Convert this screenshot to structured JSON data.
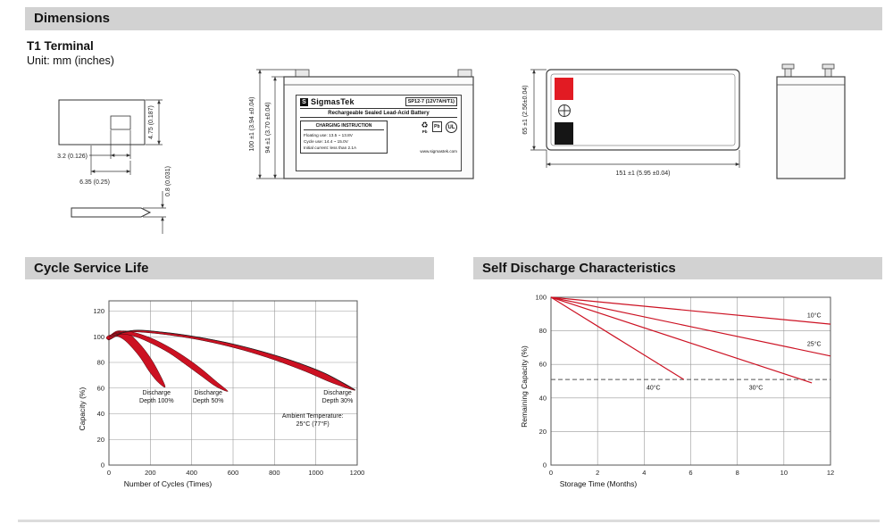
{
  "headers": {
    "dimensions": "Dimensions",
    "cycle_service_life": "Cycle Service Life",
    "self_discharge": "Self Discharge Characteristics"
  },
  "intro": {
    "terminal_type": "T1 Terminal",
    "unit": "Unit: mm (inches)"
  },
  "terminal_dims": {
    "height": "4.75 (0.187)",
    "slot_width": "3.2 (0.126)",
    "width": "6.35 (0.25)",
    "thickness": "0.8 (0.031)"
  },
  "front_view": {
    "height_overall": "100 ±1 (3.94 ±0.04)",
    "height_case": "94 ±1 (3.70 ±0.04)"
  },
  "top_view": {
    "length": "151 ±1 (5.95 ±0.04)",
    "width": "65 ±1 (2.56±0.04)"
  },
  "label": {
    "brand": "SigmasTek",
    "model": "SP12-7 (12V7AH/T1)",
    "type_line": "Rechargeable Sealed Lead-Acid Battery",
    "charging_title": "CHARGING INSTRUCTION",
    "charging_lines": [
      "Floating use: 13.5 ~ 13.8V",
      "Cycle use: 14.4 ~ 15.0V",
      "Initial current: less than 2.1A"
    ],
    "pb_recycle": "Pb",
    "pb_bin": "Pb",
    "ul_mark": "UL",
    "website": "www.sigmastek.com"
  },
  "chart_data": [
    {
      "type": "area",
      "title": "Cycle Service Life",
      "xlabel": "Number of Cycles (Times)",
      "ylabel": "Capacity (%)",
      "xlim": [
        0,
        1200
      ],
      "ylim": [
        0,
        128
      ],
      "xticks": [
        0,
        200,
        400,
        600,
        800,
        1000,
        1200
      ],
      "yticks": [
        0,
        20,
        40,
        60,
        80,
        100,
        120
      ],
      "grid": true,
      "bands": [
        {
          "name": "Discharge Depth 100%",
          "color": "#cc1122",
          "points": [
            [
              0,
              100
            ],
            [
              40,
              104.5
            ],
            [
              90,
              103
            ],
            [
              140,
              96
            ],
            [
              190,
              86
            ],
            [
              235,
              74
            ],
            [
              272,
              61
            ],
            [
              235,
              65
            ],
            [
              195,
              73
            ],
            [
              155,
              83
            ],
            [
              115,
              91
            ],
            [
              70,
              98
            ],
            [
              30,
              100.5
            ],
            [
              0,
              97.5
            ]
          ]
        },
        {
          "name": "Discharge Depth 50%",
          "color": "#cc1122",
          "points": [
            [
              0,
              100.5
            ],
            [
              60,
              104.5
            ],
            [
              130,
              103
            ],
            [
              210,
              98.5
            ],
            [
              290,
              92
            ],
            [
              370,
              84
            ],
            [
              450,
              74.5
            ],
            [
              520,
              65
            ],
            [
              575,
              57.5
            ],
            [
              520,
              61
            ],
            [
              450,
              69
            ],
            [
              370,
              78.5
            ],
            [
              290,
              87.5
            ],
            [
              210,
              94.5
            ],
            [
              130,
              100
            ],
            [
              60,
              102
            ],
            [
              0,
              97.5
            ]
          ]
        },
        {
          "name": "Discharge Depth 30%",
          "color": "#cc1122",
          "points": [
            [
              0,
              101
            ],
            [
              120,
              105
            ],
            [
              260,
              103.5
            ],
            [
              420,
              100
            ],
            [
              580,
              95
            ],
            [
              740,
              88.5
            ],
            [
              900,
              80.5
            ],
            [
              1050,
              71
            ],
            [
              1190,
              58.5
            ],
            [
              1080,
              64
            ],
            [
              950,
              73
            ],
            [
              800,
              82
            ],
            [
              650,
              89.5
            ],
            [
              500,
              95.5
            ],
            [
              350,
              100
            ],
            [
              200,
              103
            ],
            [
              80,
              103.5
            ],
            [
              0,
              98
            ]
          ]
        }
      ],
      "series": [
        {
          "name": "envelope-curve",
          "color": "#222222",
          "width": 0.8,
          "points": [
            [
              0,
              100
            ],
            [
              120,
              105
            ],
            [
              260,
              103.5
            ],
            [
              420,
              100
            ],
            [
              580,
              95
            ],
            [
              740,
              88.5
            ],
            [
              900,
              80.5
            ],
            [
              1050,
              71
            ],
            [
              1190,
              58.5
            ]
          ]
        }
      ],
      "annotations": [
        {
          "x": 230,
          "y": 55,
          "lines": [
            "Discharge",
            "Depth 100%"
          ]
        },
        {
          "x": 480,
          "y": 55,
          "lines": [
            "Discharge",
            "Depth 50%"
          ]
        },
        {
          "x": 1105,
          "y": 55,
          "lines": [
            "Discharge",
            "Depth 30%"
          ]
        },
        {
          "x": 985,
          "y": 37,
          "lines": [
            "Ambient Temperature:",
            "25°C (77°F)"
          ]
        }
      ]
    },
    {
      "type": "line",
      "title": "Self Discharge Characteristics",
      "xlabel": "Storage Time (Months)",
      "ylabel": "Remaining Capacity (%)",
      "xlim": [
        0,
        12
      ],
      "ylim": [
        0,
        100
      ],
      "xticks": [
        0,
        2,
        4,
        6,
        8,
        10,
        12
      ],
      "yticks": [
        0,
        20,
        40,
        60,
        80,
        100
      ],
      "grid": true,
      "series": [
        {
          "name": "10°C",
          "color": "#cc1122",
          "width": 1.2,
          "points": [
            [
              0,
              100
            ],
            [
              12,
              84
            ]
          ],
          "label_at": [
            11.0,
            88
          ],
          "label_anchor": "start"
        },
        {
          "name": "25°C",
          "color": "#cc1122",
          "width": 1.2,
          "points": [
            [
              0,
              100
            ],
            [
              12,
              65
            ]
          ],
          "label_at": [
            11.0,
            71
          ],
          "label_anchor": "start"
        },
        {
          "name": "30°C",
          "color": "#cc1122",
          "width": 1.2,
          "points": [
            [
              0,
              100
            ],
            [
              11.2,
              49
            ]
          ],
          "label_at": [
            8.8,
            45
          ],
          "label_anchor": "middle"
        },
        {
          "name": "40°C",
          "color": "#cc1122",
          "width": 1.2,
          "points": [
            [
              0,
              100
            ],
            [
              5.7,
              51
            ]
          ],
          "label_at": [
            4.4,
            45
          ],
          "label_anchor": "middle"
        }
      ],
      "ref_lines": [
        {
          "y": 51,
          "style": "dashed",
          "color": "#555555"
        }
      ]
    }
  ]
}
